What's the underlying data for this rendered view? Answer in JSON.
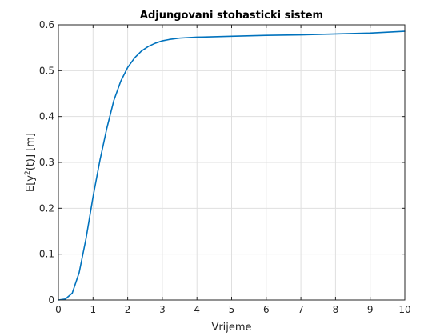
{
  "chart_data": {
    "type": "line",
    "title": "Adjungovani stohasticki sistem",
    "xlabel": "Vrijeme",
    "ylabel": {
      "prefix": "E[y",
      "superscript": "2",
      "suffix": "(t)] [m]"
    },
    "xlim": [
      0,
      10
    ],
    "ylim": [
      0,
      0.6
    ],
    "xticks": [
      0,
      1,
      2,
      3,
      4,
      5,
      6,
      7,
      8,
      9,
      10
    ],
    "xtick_labels": [
      "0",
      "1",
      "2",
      "3",
      "4",
      "5",
      "6",
      "7",
      "8",
      "9",
      "10"
    ],
    "yticks": [
      0,
      0.1,
      0.2,
      0.3,
      0.4,
      0.5,
      0.6
    ],
    "ytick_labels": [
      "0",
      "0.1",
      "0.2",
      "0.3",
      "0.4",
      "0.5",
      "0.6"
    ],
    "grid": true,
    "box": true,
    "series": [
      {
        "color": "#0072BD",
        "x": [
          0,
          0.2,
          0.4,
          0.6,
          0.8,
          1.0,
          1.2,
          1.4,
          1.6,
          1.8,
          2.0,
          2.2,
          2.4,
          2.6,
          2.8,
          3.0,
          3.2,
          3.5,
          4.0,
          5.0,
          6.0,
          7.0,
          8.0,
          9.0,
          10.0
        ],
        "y": [
          0,
          0.002,
          0.015,
          0.06,
          0.135,
          0.225,
          0.305,
          0.375,
          0.435,
          0.477,
          0.507,
          0.528,
          0.543,
          0.553,
          0.56,
          0.565,
          0.568,
          0.571,
          0.573,
          0.575,
          0.577,
          0.578,
          0.58,
          0.582,
          0.586
        ]
      }
    ]
  }
}
